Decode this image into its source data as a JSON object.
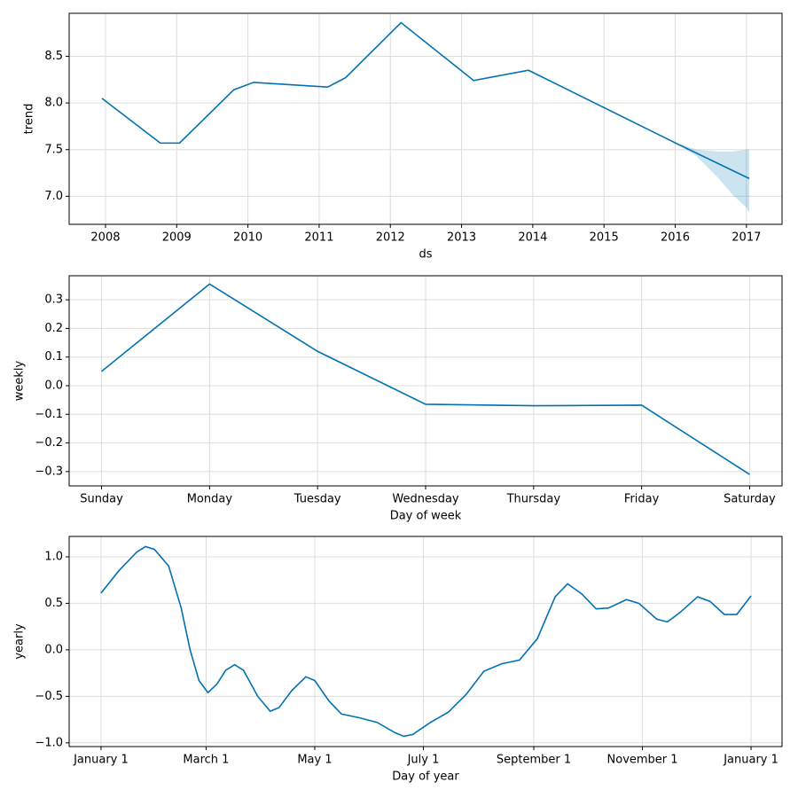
{
  "chart_data": [
    {
      "type": "line",
      "x_label": "ds",
      "y_label": "trend",
      "color": "#0072B2",
      "grid": true,
      "x": [
        2007.95,
        2008.77,
        2009.04,
        2009.8,
        2010.08,
        2011.12,
        2011.37,
        2012.15,
        2013.17,
        2013.94,
        2015.98,
        2017.04
      ],
      "values": [
        8.05,
        7.57,
        7.57,
        8.14,
        8.22,
        8.17,
        8.27,
        8.86,
        8.24,
        8.35,
        7.58,
        7.19
      ],
      "band": {
        "x": [
          2015.98,
          2016.3,
          2016.6,
          2016.8,
          2017.0,
          2017.04
        ],
        "lower": [
          7.58,
          7.43,
          7.2,
          7.02,
          6.88,
          6.82
        ],
        "upper": [
          7.58,
          7.5,
          7.48,
          7.48,
          7.5,
          7.51
        ]
      },
      "xlim": [
        2007.49,
        2017.5
      ],
      "xticks": [
        2008,
        2009,
        2010,
        2011,
        2012,
        2013,
        2014,
        2015,
        2016,
        2017
      ],
      "ylim": [
        6.7,
        8.96
      ],
      "yticks": [
        {
          "value": 7,
          "label": "7.0"
        },
        7.5,
        {
          "value": 8,
          "label": "8.0"
        },
        8.5
      ]
    },
    {
      "type": "line",
      "x_label": "Day of week",
      "y_label": "weekly",
      "color": "#0072B2",
      "grid": true,
      "categories": [
        "Sunday",
        "Monday",
        "Tuesday",
        "Wednesday",
        "Thursday",
        "Friday",
        "Saturday"
      ],
      "values": [
        0.05,
        0.355,
        0.12,
        -0.065,
        -0.07,
        -0.068,
        -0.31
      ],
      "ylim": [
        -0.35,
        0.384
      ],
      "yticks": [
        {
          "value": -0.3,
          "label": "−0.3"
        },
        {
          "value": -0.2,
          "label": "−0.2"
        },
        {
          "value": -0.1,
          "label": "−0.1"
        },
        {
          "value": 0,
          "label": "0.0"
        },
        0.1,
        0.2,
        0.3
      ]
    },
    {
      "type": "line",
      "x_label": "Day of year",
      "y_label": "yearly",
      "color": "#0072B2",
      "grid": true,
      "x": [
        0,
        10,
        20,
        25,
        30,
        38,
        45,
        50,
        55,
        60,
        65,
        70,
        75,
        80,
        88,
        95,
        100,
        107,
        115,
        120,
        128,
        135,
        145,
        155,
        165,
        170,
        175,
        185,
        195,
        205,
        215,
        225,
        235,
        245,
        255,
        262,
        270,
        278,
        285,
        295,
        302,
        312,
        318,
        325,
        335,
        342,
        350,
        357,
        365
      ],
      "values": [
        0.61,
        0.85,
        1.05,
        1.11,
        1.08,
        0.9,
        0.45,
        0.0,
        -0.33,
        -0.46,
        -0.37,
        -0.22,
        -0.16,
        -0.22,
        -0.5,
        -0.66,
        -0.62,
        -0.44,
        -0.29,
        -0.33,
        -0.55,
        -0.69,
        -0.73,
        -0.78,
        -0.89,
        -0.93,
        -0.91,
        -0.78,
        -0.67,
        -0.48,
        -0.23,
        -0.15,
        -0.11,
        0.12,
        0.57,
        0.71,
        0.6,
        0.44,
        0.45,
        0.54,
        0.5,
        0.33,
        0.3,
        0.4,
        0.57,
        0.52,
        0.38,
        0.38,
        0.58
      ],
      "xlim": [
        -17.9,
        382.4
      ],
      "xticks": [
        {
          "value": 0,
          "label": "January 1"
        },
        {
          "value": 59,
          "label": "March 1"
        },
        {
          "value": 120,
          "label": "May 1"
        },
        {
          "value": 181,
          "label": "July 1"
        },
        {
          "value": 243,
          "label": "September 1"
        },
        {
          "value": 304,
          "label": "November 1"
        },
        {
          "value": 365,
          "label": "January 1"
        }
      ],
      "ylim": [
        -1.04,
        1.219
      ],
      "yticks": [
        {
          "value": -1,
          "label": "−1.0"
        },
        {
          "value": -0.5,
          "label": "−0.5"
        },
        {
          "value": 0,
          "label": "0.0"
        },
        0.5,
        {
          "value": 1,
          "label": "1.0"
        }
      ]
    }
  ]
}
